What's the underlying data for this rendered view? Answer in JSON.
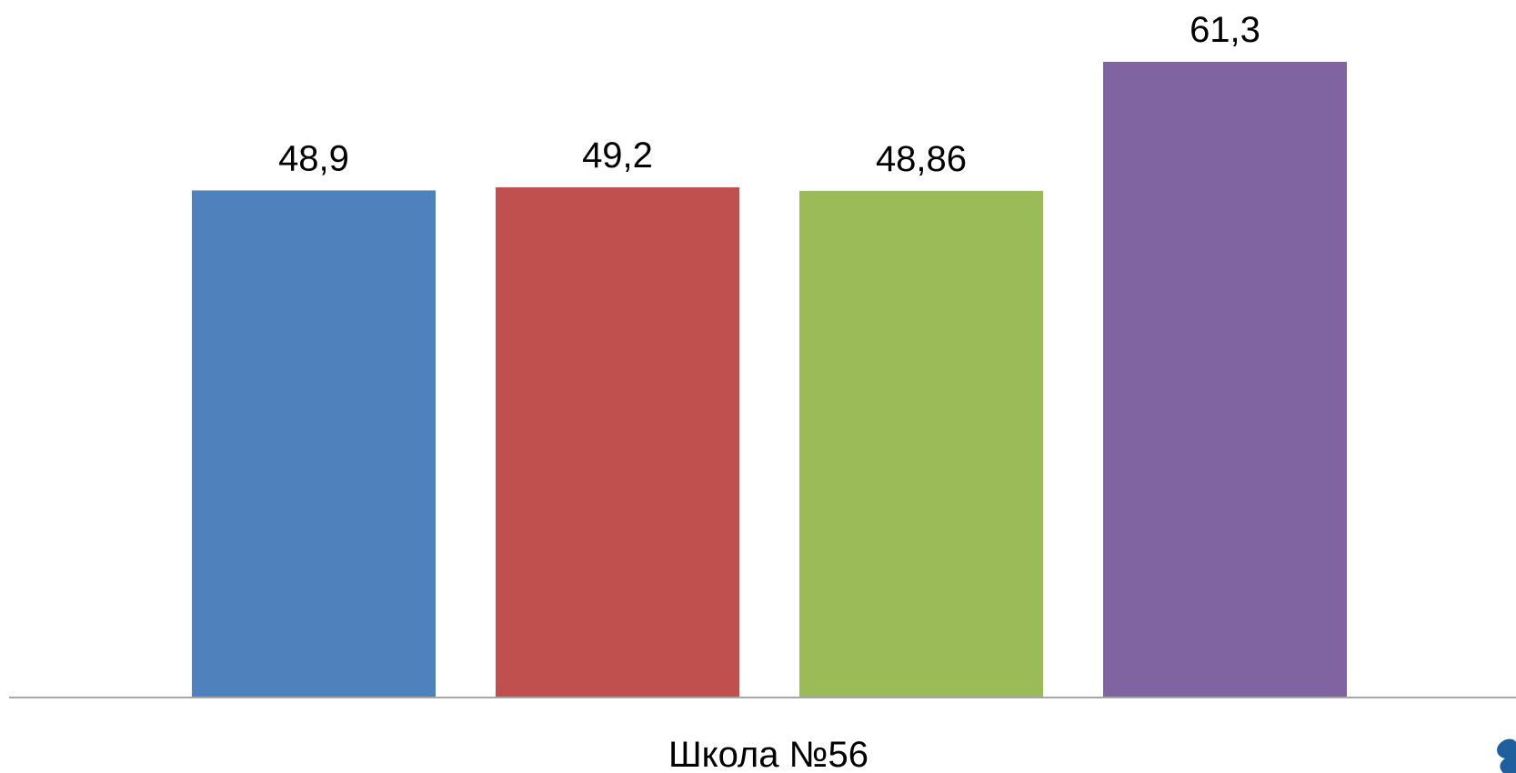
{
  "chart_data": {
    "type": "bar",
    "categories": [
      "Школа №56"
    ],
    "series": [
      {
        "values": [
          48.9
        ],
        "label": "48,9",
        "color": "#4F81BD"
      },
      {
        "values": [
          49.2
        ],
        "label": "49,2",
        "color": "#C0504D"
      },
      {
        "values": [
          48.86
        ],
        "label": "48,86",
        "color": "#9BBB59"
      },
      {
        "values": [
          61.3
        ],
        "label": "61,3",
        "color": "#8064A2"
      }
    ],
    "title": "",
    "xlabel": "",
    "ylabel": "",
    "ylim": [
      0,
      61.3
    ],
    "grid": false,
    "legend": "none",
    "axis_color": "#A6A6A6"
  },
  "logo": {
    "icon": "logo-icon",
    "color": "#1F5F9E"
  }
}
